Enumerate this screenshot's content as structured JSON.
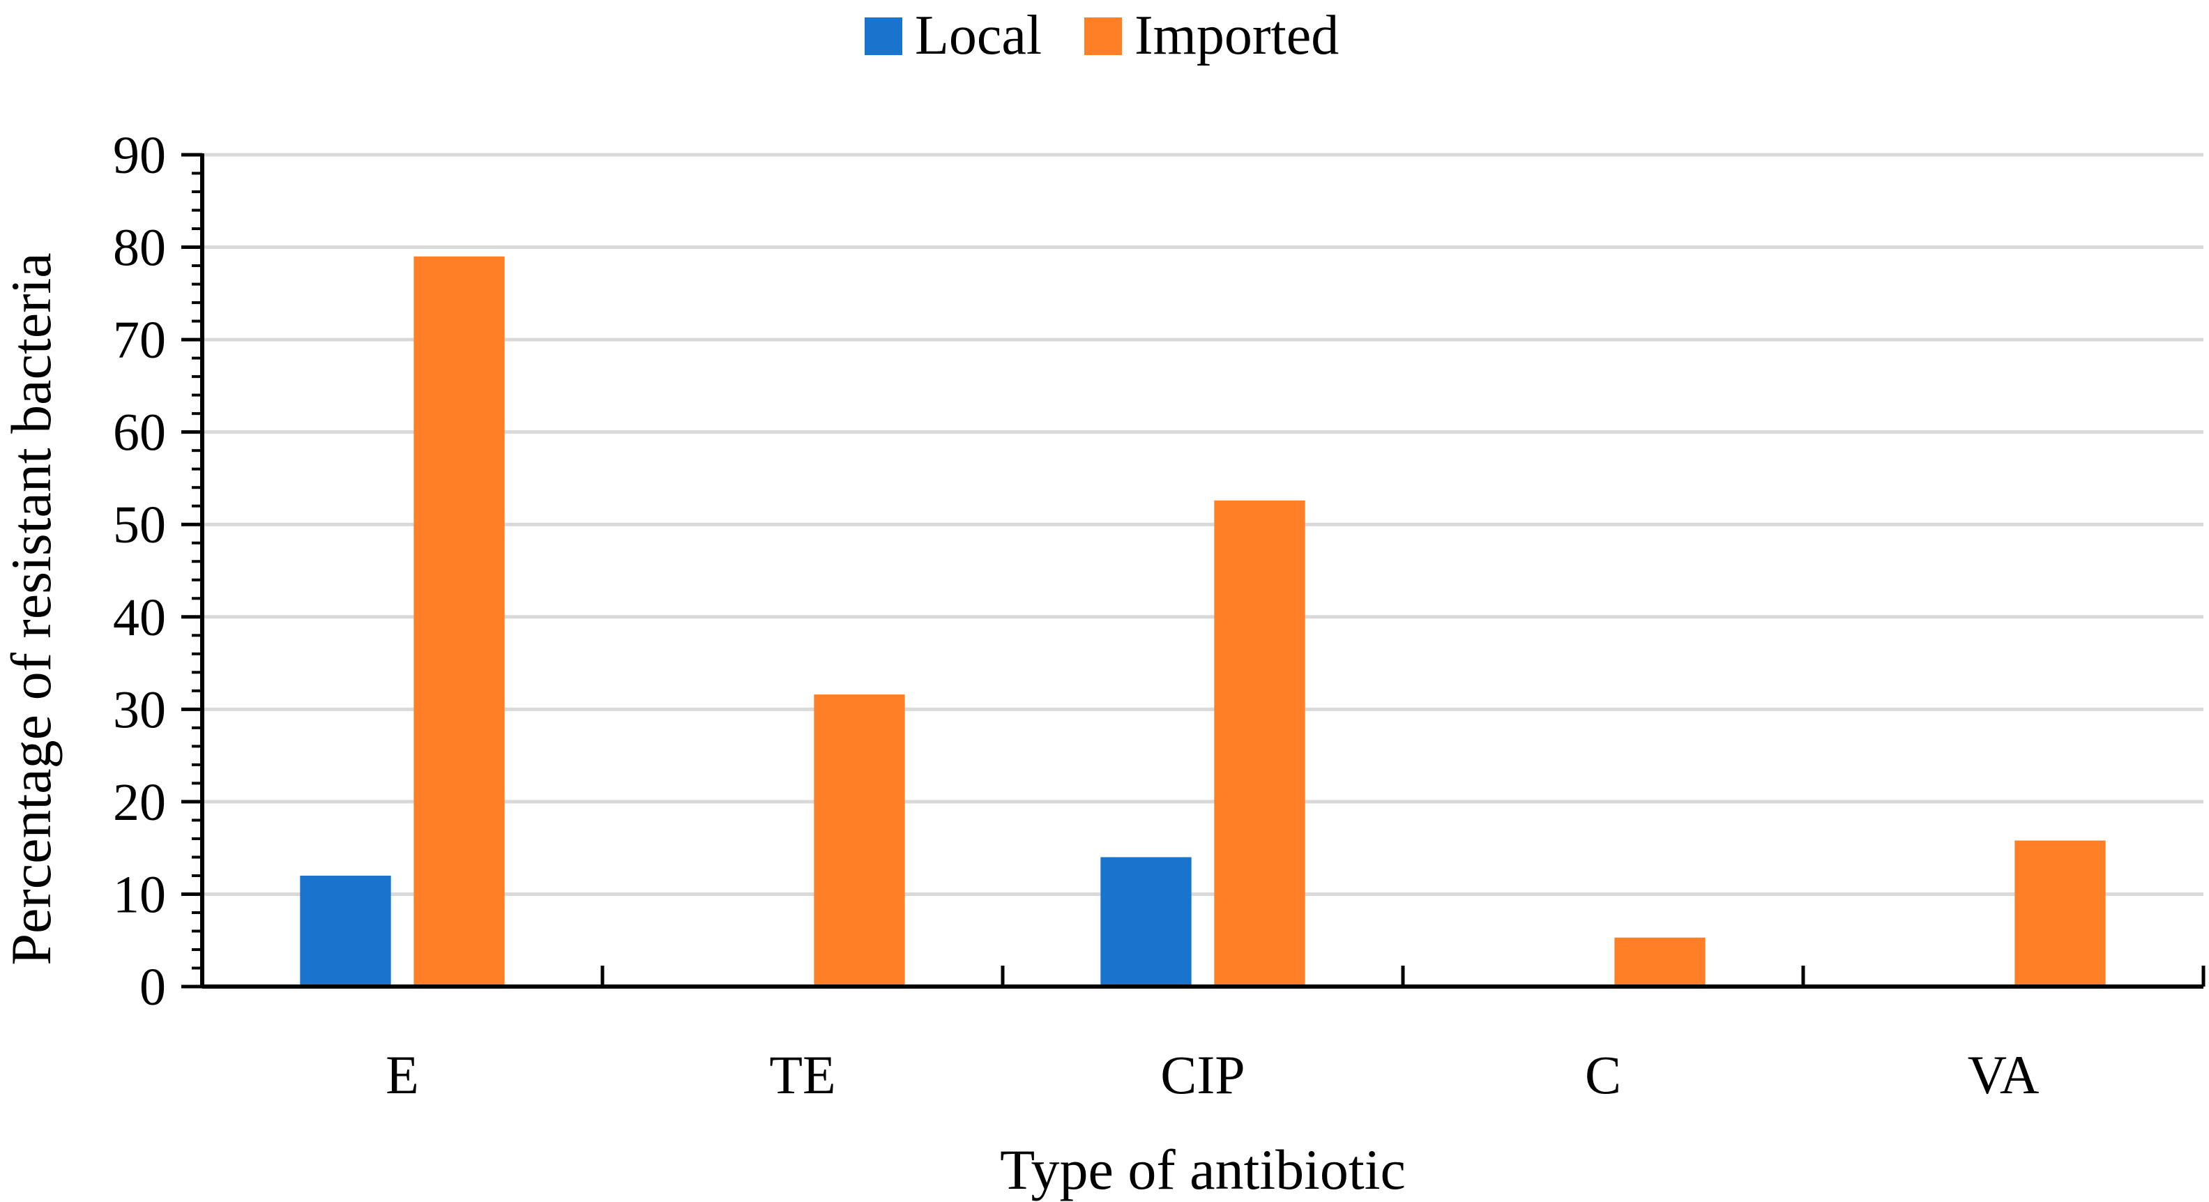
{
  "chart_data": {
    "type": "bar",
    "title": "",
    "xlabel": "Type of antibiotic",
    "ylabel": "Percentage of resistant bacteria",
    "categories": [
      "E",
      "TE",
      "CIP",
      "C",
      "VA"
    ],
    "series": [
      {
        "name": "Local",
        "color": "#1874CD",
        "values": [
          12,
          0,
          14,
          0,
          0
        ]
      },
      {
        "name": "Imported",
        "color": "#FF7F27",
        "values": [
          79,
          31.6,
          52.6,
          5.3,
          15.8
        ]
      }
    ],
    "ylim": [
      0,
      90
    ],
    "yticks": [
      0,
      10,
      20,
      30,
      40,
      50,
      60,
      70,
      80,
      90
    ],
    "grid": true,
    "legend_position": "top-center"
  }
}
